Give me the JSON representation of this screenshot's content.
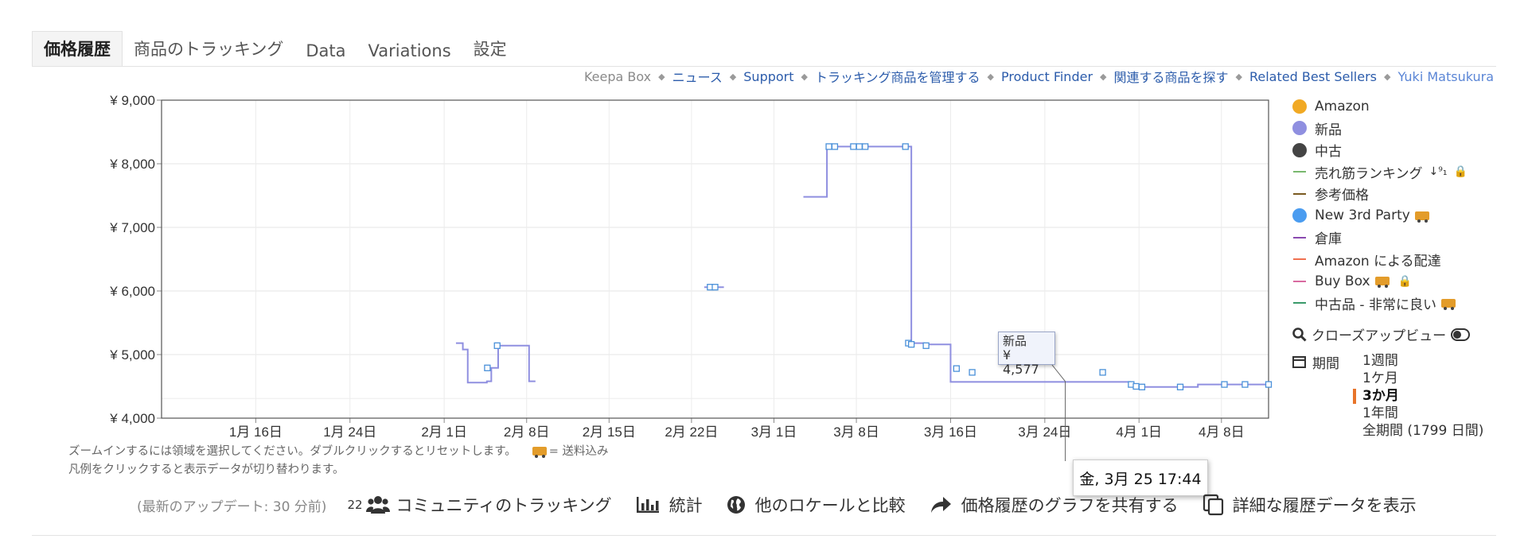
{
  "tabs": [
    "価格履歴",
    "商品のトラッキング",
    "Data",
    "Variations",
    "設定"
  ],
  "links": {
    "keepa_box": "Keepa Box",
    "items": [
      "ニュース",
      "Support",
      "トラッキング商品を管理する",
      "Product Finder",
      "関連する商品を探す",
      "Related Best Sellers"
    ],
    "user": "Yuki Matsukura"
  },
  "legend": [
    {
      "label": "Amazon",
      "kind": "dot",
      "color": "#f1a924"
    },
    {
      "label": "新品",
      "kind": "dot",
      "color": "#8f8fe0"
    },
    {
      "label": "中古",
      "kind": "dot",
      "color": "#444444"
    },
    {
      "label": "売れ筋ランキング",
      "kind": "dash",
      "color": "#79b86e",
      "icons": "sort-icon lock-icon"
    },
    {
      "label": "参考価格",
      "kind": "dash",
      "color": "#7a5a20"
    },
    {
      "label": "New 3rd Party",
      "kind": "dot",
      "color": "#4a9cf0",
      "icons": "truck-icon"
    },
    {
      "label": "倉庫",
      "kind": "dash",
      "color": "#8a4ab0"
    },
    {
      "label": "Amazon による配達",
      "kind": "dash",
      "color": "#f07050"
    },
    {
      "label": "Buy Box",
      "kind": "dash",
      "color": "#d96aa0",
      "icons": "truck-icon lock-icon"
    },
    {
      "label": "中古品 - 非常に良い",
      "kind": "dash",
      "color": "#3a9a6a",
      "icons": "truck-icon"
    }
  ],
  "closeup_label": "クローズアップビュー",
  "period_label": "期間",
  "periods": [
    "1週間",
    "1ケ月",
    "3か月",
    "1年間",
    "全期間 (1799 日間)"
  ],
  "selected_period": "3か月",
  "hints": {
    "line1": "ズームインするには領域を選択してください。ダブルクリックするとリセットします。",
    "shipping": "= 送料込み",
    "line2": "凡例をクリックすると表示データが切り替わります。"
  },
  "tooltip": {
    "series": "新品",
    "value": "¥ 4,577"
  },
  "x_tooltip": "金, 3月 25 17:44",
  "footer": {
    "update": "(最新のアップデート: 30 分前)",
    "community_count": "22",
    "community": "コミュニティのトラッキング",
    "stats": "統計",
    "compare": "他のロケールと比較",
    "share": "価格履歴のグラフを共有する",
    "details": "詳細な履歴データを表示"
  },
  "chart_data": {
    "type": "line",
    "ylim": [
      4000,
      9000
    ],
    "y_ticks": [
      4000,
      5000,
      6000,
      7000,
      8000,
      9000
    ],
    "y_tick_labels": [
      "¥ 4,000",
      "¥ 5,000",
      "¥ 6,000",
      "¥ 7,000",
      "¥ 8,000",
      "¥ 9,000"
    ],
    "xlim": [
      "2022-01-08",
      "2022-04-12"
    ],
    "x_ticks": [
      "2022-01-16",
      "2022-01-24",
      "2022-02-01",
      "2022-02-08",
      "2022-02-15",
      "2022-02-22",
      "2022-03-01",
      "2022-03-08",
      "2022-03-16",
      "2022-03-24",
      "2022-04-01",
      "2022-04-08"
    ],
    "x_tick_labels": [
      "1月 16日",
      "1月 24日",
      "2月 1日",
      "2月 8日",
      "2月 15日",
      "2月 22日",
      "3月 1日",
      "3月 8日",
      "3月 16日",
      "3月 24日",
      "4月 1日",
      "4月 8日"
    ],
    "grid": true,
    "series": [
      {
        "name": "新品",
        "color": "#8f8fe0",
        "step": true,
        "segments": [
          [
            [
              "2022-02-02T00:00",
              5180
            ],
            [
              "2022-02-02T14:00",
              5080
            ],
            [
              "2022-02-03T00:00",
              4560
            ],
            [
              "2022-02-04T15:00",
              4580
            ],
            [
              "2022-02-05T00:00",
              4790
            ],
            [
              "2022-02-05T14:00",
              5140
            ],
            [
              "2022-02-07T14:00",
              5140
            ],
            [
              "2022-02-08T05:00",
              4580
            ],
            [
              "2022-02-08T18:00",
              4580
            ]
          ],
          [
            [
              "2022-02-23T02:00",
              6060
            ],
            [
              "2022-02-24T18:00",
              6060
            ]
          ],
          [
            [
              "2022-03-03T12:00",
              7480
            ],
            [
              "2022-03-05T02:00",
              7480
            ],
            [
              "2022-03-05T12:00",
              8270
            ],
            [
              "2022-03-12T06:00",
              8270
            ],
            [
              "2022-03-12T16:00",
              5180
            ],
            [
              "2022-03-13T18:00",
              5160
            ],
            [
              "2022-03-16T00:00",
              5140
            ],
            [
              "2022-03-16T00:00",
              4570
            ],
            [
              "2022-03-31T00:00",
              4570
            ],
            [
              "2022-03-31T06:00",
              4520
            ],
            [
              "2022-04-01T00:00",
              4490
            ],
            [
              "2022-04-05T18:00",
              4490
            ],
            [
              "2022-04-06T00:00",
              4530
            ],
            [
              "2022-04-12T00:00",
              4530
            ]
          ]
        ],
        "markers": [
          [
            "2022-02-04T16:00",
            4790
          ],
          [
            "2022-02-05T12:00",
            5140
          ],
          [
            "2022-02-23T14:00",
            6060
          ],
          [
            "2022-02-24T00:00",
            6060
          ],
          [
            "2022-03-05T16:00",
            8270
          ],
          [
            "2022-03-06T04:00",
            8270
          ],
          [
            "2022-03-07T18:00",
            8270
          ],
          [
            "2022-03-08T06:00",
            8270
          ],
          [
            "2022-03-08T18:00",
            8270
          ],
          [
            "2022-03-12T04:00",
            8270
          ],
          [
            "2022-03-12T10:00",
            5180
          ],
          [
            "2022-03-12T16:00",
            5160
          ],
          [
            "2022-03-13T22:00",
            5140
          ],
          [
            "2022-03-16T12:00",
            4780
          ],
          [
            "2022-03-17T20:00",
            4720
          ],
          [
            "2022-03-28T22:00",
            4720
          ],
          [
            "2022-03-31T08:00",
            4530
          ],
          [
            "2022-03-31T18:00",
            4500
          ],
          [
            "2022-04-01T06:00",
            4490
          ],
          [
            "2022-04-04T12:00",
            4490
          ],
          [
            "2022-04-08T06:00",
            4530
          ],
          [
            "2022-04-10T00:00",
            4530
          ],
          [
            "2022-04-12T00:00",
            4530
          ]
        ]
      }
    ]
  }
}
